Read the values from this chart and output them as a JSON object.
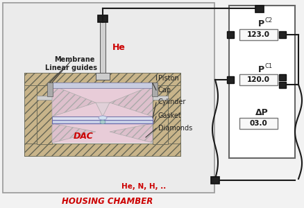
{
  "bg_color": "#f2f2f2",
  "chamber_bg": "#ebebeb",
  "panel_bg": "#ffffff",
  "title_text": "HOUSING CHAMBER",
  "title_color": "#cc0000",
  "he_label": "He",
  "he_color": "#cc0000",
  "he_n_label": "He, N, H, ..",
  "he_n_color": "#cc0000",
  "dac_label": "DAC",
  "dac_color": "#cc0000",
  "pc2_label": "P",
  "pc2_sub": "C2",
  "pc2_value": "123.0",
  "pc1_label": "P",
  "pc1_sub": "C1",
  "pc1_value": "120.0",
  "dp_label": "ΔP",
  "dp_value": "03.0",
  "connector_color": "#1a1a1a",
  "hatch_fc": "#c8b48a",
  "hatch_ec": "#666655",
  "diamond_pink": "#e8ccd8",
  "inner_bg": "#f0eae8",
  "gasket_color": "#b8c8e8",
  "label_color": "#222222",
  "label_fontsize": 7
}
